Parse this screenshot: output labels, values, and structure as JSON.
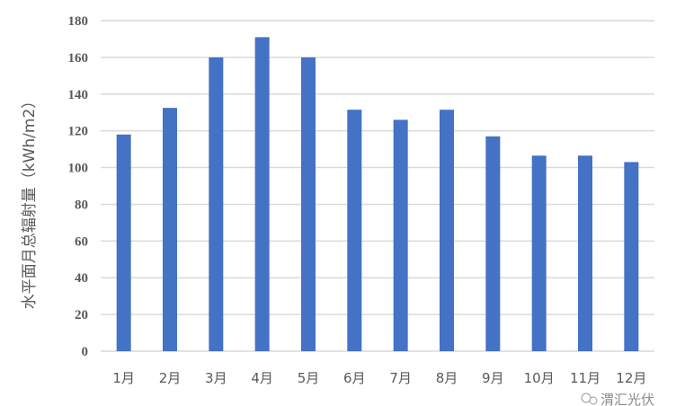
{
  "chart_data": {
    "type": "bar",
    "title": "",
    "xlabel": "",
    "ylabel": "水平面月总辐射量（kWh/m2）",
    "categories": [
      "1月",
      "2月",
      "3月",
      "4月",
      "5月",
      "6月",
      "7月",
      "8月",
      "9月",
      "10月",
      "11月",
      "12月"
    ],
    "values": [
      118,
      132.5,
      160,
      171,
      160,
      131.5,
      126,
      131.5,
      117,
      106.5,
      106.5,
      103
    ],
    "ylim": [
      0,
      180
    ],
    "yticks": [
      0,
      20,
      40,
      60,
      80,
      100,
      120,
      140,
      160,
      180
    ],
    "grid": true,
    "legend": "none",
    "bar_color": "#4472C4",
    "grid_color": "#D9D9D9"
  },
  "watermark": "渭汇光伏"
}
